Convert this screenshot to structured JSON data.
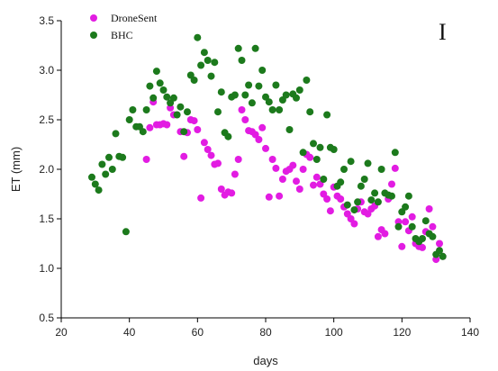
{
  "chart_data": {
    "type": "scatter",
    "panel_label": "I",
    "xlabel": "days",
    "ylabel": "ET (mm)",
    "xlim": [
      20,
      140
    ],
    "ylim": [
      0.5,
      3.5
    ],
    "xticks": [
      "20",
      "40",
      "60",
      "80",
      "100",
      "120",
      "140"
    ],
    "yticks": [
      "0.5",
      "1.0",
      "1.5",
      "2.0",
      "2.5",
      "3.0",
      "3.5"
    ],
    "legend_position": "top-left",
    "series": [
      {
        "name": "DroneSent",
        "color": "#e21ce2",
        "points": [
          [
            45,
            2.1
          ],
          [
            46,
            2.42
          ],
          [
            47,
            2.68
          ],
          [
            48,
            2.45
          ],
          [
            49,
            2.45
          ],
          [
            50,
            2.46
          ],
          [
            51,
            2.45
          ],
          [
            52,
            2.62
          ],
          [
            53,
            2.55
          ],
          [
            55,
            2.38
          ],
          [
            56,
            2.13
          ],
          [
            57,
            2.37
          ],
          [
            58,
            2.5
          ],
          [
            59,
            2.49
          ],
          [
            60,
            2.4
          ],
          [
            61,
            1.71
          ],
          [
            62,
            2.27
          ],
          [
            63,
            2.2
          ],
          [
            64,
            2.14
          ],
          [
            65,
            2.05
          ],
          [
            66,
            2.06
          ],
          [
            67,
            1.8
          ],
          [
            68,
            1.74
          ],
          [
            69,
            1.77
          ],
          [
            70,
            1.76
          ],
          [
            71,
            1.95
          ],
          [
            72,
            2.1
          ],
          [
            73,
            2.6
          ],
          [
            74,
            2.5
          ],
          [
            75,
            2.39
          ],
          [
            76,
            2.38
          ],
          [
            77,
            2.35
          ],
          [
            78,
            2.3
          ],
          [
            79,
            2.42
          ],
          [
            80,
            2.21
          ],
          [
            81,
            1.72
          ],
          [
            82,
            2.1
          ],
          [
            83,
            2.01
          ],
          [
            84,
            1.73
          ],
          [
            85,
            1.9
          ],
          [
            86,
            1.98
          ],
          [
            87,
            2.0
          ],
          [
            88,
            2.04
          ],
          [
            89,
            1.88
          ],
          [
            90,
            1.8
          ],
          [
            91,
            2.0
          ],
          [
            92,
            2.15
          ],
          [
            93,
            2.12
          ],
          [
            94,
            1.84
          ],
          [
            95,
            1.92
          ],
          [
            96,
            1.85
          ],
          [
            97,
            1.75
          ],
          [
            98,
            1.7
          ],
          [
            99,
            1.58
          ],
          [
            100,
            1.82
          ],
          [
            101,
            1.73
          ],
          [
            102,
            1.7
          ],
          [
            103,
            1.62
          ],
          [
            104,
            1.55
          ],
          [
            105,
            1.5
          ],
          [
            106,
            1.45
          ],
          [
            107,
            1.6
          ],
          [
            108,
            1.67
          ],
          [
            109,
            1.57
          ],
          [
            110,
            1.55
          ],
          [
            111,
            1.6
          ],
          [
            112,
            1.63
          ],
          [
            113,
            1.32
          ],
          [
            114,
            1.39
          ],
          [
            115,
            1.35
          ],
          [
            116,
            1.7
          ],
          [
            117,
            1.85
          ],
          [
            118,
            2.01
          ],
          [
            119,
            1.47
          ],
          [
            120,
            1.22
          ],
          [
            121,
            1.47
          ],
          [
            122,
            1.38
          ],
          [
            123,
            1.52
          ],
          [
            124,
            1.25
          ],
          [
            125,
            1.22
          ],
          [
            126,
            1.21
          ],
          [
            127,
            1.37
          ],
          [
            128,
            1.6
          ],
          [
            129,
            1.42
          ],
          [
            130,
            1.09
          ],
          [
            131,
            1.25
          ],
          [
            132,
            1.12
          ]
        ]
      },
      {
        "name": "BHC",
        "color": "#1c7a1c",
        "points": [
          [
            29,
            1.92
          ],
          [
            30,
            1.85
          ],
          [
            31,
            1.79
          ],
          [
            32,
            2.05
          ],
          [
            33,
            1.95
          ],
          [
            34,
            2.12
          ],
          [
            35,
            2.0
          ],
          [
            36,
            2.36
          ],
          [
            37,
            2.13
          ],
          [
            38,
            2.12
          ],
          [
            39,
            1.37
          ],
          [
            40,
            2.5
          ],
          [
            41,
            2.6
          ],
          [
            42,
            2.43
          ],
          [
            43,
            2.43
          ],
          [
            44,
            2.38
          ],
          [
            45,
            2.6
          ],
          [
            46,
            2.84
          ],
          [
            47,
            2.72
          ],
          [
            48,
            2.99
          ],
          [
            49,
            2.87
          ],
          [
            50,
            2.8
          ],
          [
            51,
            2.73
          ],
          [
            52,
            2.67
          ],
          [
            53,
            2.72
          ],
          [
            54,
            2.55
          ],
          [
            55,
            2.63
          ],
          [
            56,
            2.38
          ],
          [
            57,
            2.58
          ],
          [
            58,
            2.95
          ],
          [
            59,
            2.9
          ],
          [
            60,
            3.33
          ],
          [
            61,
            3.05
          ],
          [
            62,
            3.18
          ],
          [
            63,
            3.1
          ],
          [
            64,
            2.94
          ],
          [
            65,
            3.08
          ],
          [
            66,
            2.58
          ],
          [
            67,
            2.78
          ],
          [
            68,
            2.37
          ],
          [
            69,
            2.33
          ],
          [
            70,
            2.73
          ],
          [
            71,
            2.75
          ],
          [
            72,
            3.22
          ],
          [
            73,
            3.1
          ],
          [
            74,
            2.75
          ],
          [
            75,
            2.85
          ],
          [
            76,
            2.67
          ],
          [
            77,
            3.22
          ],
          [
            78,
            2.84
          ],
          [
            79,
            3.0
          ],
          [
            80,
            2.73
          ],
          [
            81,
            2.68
          ],
          [
            82,
            2.6
          ],
          [
            83,
            2.85
          ],
          [
            84,
            2.6
          ],
          [
            85,
            2.7
          ],
          [
            86,
            2.75
          ],
          [
            87,
            2.4
          ],
          [
            88,
            2.76
          ],
          [
            89,
            2.72
          ],
          [
            90,
            2.8
          ],
          [
            91,
            2.17
          ],
          [
            92,
            2.9
          ],
          [
            93,
            2.58
          ],
          [
            94,
            2.26
          ],
          [
            95,
            2.1
          ],
          [
            96,
            2.22
          ],
          [
            97,
            1.9
          ],
          [
            98,
            2.55
          ],
          [
            99,
            2.22
          ],
          [
            100,
            2.2
          ],
          [
            101,
            1.83
          ],
          [
            102,
            1.87
          ],
          [
            103,
            2.0
          ],
          [
            104,
            1.64
          ],
          [
            105,
            2.08
          ],
          [
            106,
            1.59
          ],
          [
            107,
            1.67
          ],
          [
            108,
            1.83
          ],
          [
            109,
            1.9
          ],
          [
            110,
            2.06
          ],
          [
            111,
            1.69
          ],
          [
            112,
            1.76
          ],
          [
            113,
            1.67
          ],
          [
            114,
            2.0
          ],
          [
            115,
            1.76
          ],
          [
            116,
            1.74
          ],
          [
            117,
            1.73
          ],
          [
            118,
            2.17
          ],
          [
            119,
            1.42
          ],
          [
            120,
            1.57
          ],
          [
            121,
            1.62
          ],
          [
            122,
            1.73
          ],
          [
            123,
            1.42
          ],
          [
            124,
            1.3
          ],
          [
            125,
            1.27
          ],
          [
            126,
            1.3
          ],
          [
            127,
            1.48
          ],
          [
            128,
            1.35
          ],
          [
            129,
            1.32
          ],
          [
            130,
            1.14
          ],
          [
            131,
            1.18
          ],
          [
            132,
            1.12
          ]
        ]
      }
    ]
  }
}
